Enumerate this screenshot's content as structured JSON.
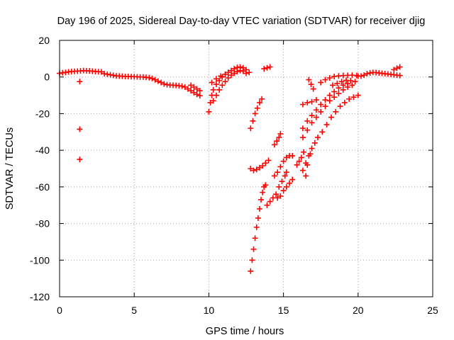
{
  "chart_data": {
    "type": "scatter",
    "title": "Day 196 of 2025, Sidereal Day-to-day VTEC variation (SDTVAR) for receiver djig",
    "xlabel": "GPS time / hours",
    "ylabel": "SDTVAR / TECUs",
    "xlim": [
      0,
      25
    ],
    "ylim": [
      -120,
      20
    ],
    "xticks": [
      "0",
      "5",
      "10",
      "15",
      "20",
      "25"
    ],
    "yticks": [
      "20",
      "0",
      "-20",
      "-40",
      "-60",
      "-80",
      "-100",
      "-120"
    ],
    "grid": true,
    "marker": "plus",
    "series_color": "#ff0000",
    "series": [
      {
        "points": [
          [
            0.0,
            2.0
          ],
          [
            0.2,
            2.3
          ],
          [
            0.4,
            2.5
          ],
          [
            0.6,
            2.8
          ],
          [
            0.8,
            3.0
          ],
          [
            1.0,
            3.1
          ],
          [
            1.2,
            3.2
          ],
          [
            1.4,
            3.3
          ],
          [
            1.6,
            3.5
          ],
          [
            1.8,
            3.4
          ],
          [
            2.0,
            3.3
          ],
          [
            2.2,
            3.2
          ],
          [
            2.4,
            3.0
          ],
          [
            2.6,
            2.9
          ],
          [
            2.8,
            2.8
          ],
          [
            1.35,
            -2.5
          ],
          [
            1.35,
            -28.5
          ],
          [
            1.35,
            -45
          ],
          [
            3.0,
            1.8
          ],
          [
            3.2,
            1.5
          ],
          [
            3.4,
            1.2
          ],
          [
            3.6,
            0.9
          ],
          [
            3.8,
            0.6
          ],
          [
            4.0,
            0.5
          ],
          [
            4.2,
            0.4
          ],
          [
            4.4,
            0.3
          ],
          [
            4.6,
            0.3
          ],
          [
            4.8,
            0.2
          ],
          [
            5.0,
            0.2
          ],
          [
            5.2,
            0.1
          ],
          [
            5.4,
            0.0
          ],
          [
            5.6,
            0.0
          ],
          [
            5.8,
            -0.2
          ],
          [
            6.0,
            -0.4
          ],
          [
            6.2,
            -0.8
          ],
          [
            6.4,
            -1.5
          ],
          [
            6.6,
            -2.3
          ],
          [
            6.8,
            -3.0
          ],
          [
            7.0,
            -3.8
          ],
          [
            7.2,
            -4.2
          ],
          [
            7.4,
            -4.4
          ],
          [
            7.6,
            -4.5
          ],
          [
            7.8,
            -4.6
          ],
          [
            8.0,
            -4.8
          ],
          [
            8.2,
            -5.0
          ],
          [
            8.4,
            -5.5
          ],
          [
            8.6,
            -6.5
          ],
          [
            8.8,
            -7.5
          ],
          [
            9.0,
            -8.5
          ],
          [
            9.2,
            -9.5
          ],
          [
            9.4,
            -10.2
          ],
          [
            8.8,
            -4.5
          ],
          [
            9.0,
            -5.5
          ],
          [
            9.2,
            -6.5
          ],
          [
            9.4,
            -7.5
          ],
          [
            10.0,
            -19
          ],
          [
            10.1,
            -14
          ],
          [
            10.2,
            -10
          ],
          [
            10.3,
            -7
          ],
          [
            10.5,
            -4
          ],
          [
            10.7,
            -2
          ],
          [
            10.9,
            0
          ],
          [
            11.1,
            1.5
          ],
          [
            11.3,
            2.5
          ],
          [
            11.5,
            3.5
          ],
          [
            11.7,
            4.5
          ],
          [
            11.9,
            5.2
          ],
          [
            12.1,
            5.5
          ],
          [
            12.3,
            5.0
          ],
          [
            12.5,
            4.0
          ],
          [
            12.7,
            2.5
          ],
          [
            10.3,
            -13
          ],
          [
            10.5,
            -10
          ],
          [
            10.7,
            -7
          ],
          [
            10.9,
            -4.5
          ],
          [
            11.1,
            -2.5
          ],
          [
            11.3,
            -0.5
          ],
          [
            11.5,
            1.0
          ],
          [
            11.7,
            2.0
          ],
          [
            11.9,
            3.0
          ],
          [
            12.1,
            3.5
          ],
          [
            12.3,
            3.2
          ],
          [
            12.5,
            2.0
          ],
          [
            10.2,
            -3
          ],
          [
            10.5,
            -1
          ],
          [
            10.8,
            0.5
          ],
          [
            11.1,
            1.5
          ],
          [
            13.7,
            4.5
          ],
          [
            13.9,
            5.0
          ],
          [
            14.1,
            5.5
          ],
          [
            12.8,
            -106
          ],
          [
            12.9,
            -100
          ],
          [
            13.0,
            -94
          ],
          [
            13.1,
            -88
          ],
          [
            13.2,
            -82
          ],
          [
            13.3,
            -77
          ],
          [
            13.4,
            -72
          ],
          [
            13.5,
            -67
          ],
          [
            13.6,
            -63
          ],
          [
            13.7,
            -60
          ],
          [
            13.8,
            -59
          ],
          [
            12.8,
            -28
          ],
          [
            12.95,
            -24
          ],
          [
            13.1,
            -20
          ],
          [
            13.25,
            -17
          ],
          [
            13.4,
            -14
          ],
          [
            13.55,
            -12
          ],
          [
            12.8,
            -50
          ],
          [
            13.0,
            -51
          ],
          [
            13.2,
            -50.5
          ],
          [
            13.4,
            -49.5
          ],
          [
            13.6,
            -48.5
          ],
          [
            13.8,
            -47
          ],
          [
            14.0,
            -45.5
          ],
          [
            13.9,
            -70
          ],
          [
            14.1,
            -68
          ],
          [
            14.3,
            -66
          ],
          [
            14.5,
            -64
          ],
          [
            14.7,
            -60
          ],
          [
            14.9,
            -57
          ],
          [
            15.1,
            -54
          ],
          [
            15.2,
            -52
          ],
          [
            14.4,
            -54
          ],
          [
            14.6,
            -52
          ],
          [
            14.8,
            -49
          ],
          [
            15.0,
            -46
          ],
          [
            15.2,
            -44
          ],
          [
            15.4,
            -43
          ],
          [
            15.6,
            -43
          ],
          [
            14.4,
            -37
          ],
          [
            14.55,
            -35
          ],
          [
            14.7,
            -33
          ],
          [
            14.8,
            -31
          ],
          [
            14.6,
            -66
          ],
          [
            14.8,
            -65
          ],
          [
            15.0,
            -62
          ],
          [
            15.2,
            -60
          ],
          [
            15.4,
            -58
          ],
          [
            15.6,
            -56
          ],
          [
            15.9,
            -48
          ],
          [
            16.05,
            -46
          ],
          [
            16.2,
            -44
          ],
          [
            16.35,
            -41
          ],
          [
            16.7,
            -1.5
          ],
          [
            16.85,
            -4
          ],
          [
            17.0,
            -6.5
          ],
          [
            16.3,
            -15
          ],
          [
            16.6,
            -14
          ],
          [
            16.9,
            -13.5
          ],
          [
            17.2,
            -12.5
          ],
          [
            16.3,
            -33
          ],
          [
            16.6,
            -29
          ],
          [
            16.9,
            -25
          ],
          [
            17.2,
            -22
          ],
          [
            17.5,
            -19
          ],
          [
            17.8,
            -16
          ],
          [
            18.1,
            -13
          ],
          [
            18.4,
            -11
          ],
          [
            18.7,
            -9
          ],
          [
            19.0,
            -7
          ],
          [
            19.3,
            -5.5
          ],
          [
            19.6,
            -4.5
          ],
          [
            16.3,
            -28
          ],
          [
            16.6,
            -24
          ],
          [
            16.9,
            -21
          ],
          [
            17.2,
            -18
          ],
          [
            17.5,
            -15
          ],
          [
            17.8,
            -12.5
          ],
          [
            18.1,
            -10
          ],
          [
            18.4,
            -8
          ],
          [
            18.7,
            -6
          ],
          [
            19.0,
            -4.5
          ],
          [
            19.3,
            -3.5
          ],
          [
            16.3,
            -51
          ],
          [
            16.5,
            -47
          ],
          [
            16.7,
            -43
          ],
          [
            16.9,
            -39
          ],
          [
            17.1,
            -36
          ],
          [
            17.3,
            -33
          ],
          [
            17.6,
            -30
          ],
          [
            17.9,
            -26
          ],
          [
            18.2,
            -22
          ],
          [
            18.5,
            -19
          ],
          [
            18.8,
            -16
          ],
          [
            19.1,
            -14
          ],
          [
            19.4,
            -12
          ],
          [
            19.7,
            -11
          ],
          [
            20.0,
            -10
          ],
          [
            16.5,
            -54
          ],
          [
            16.6,
            -48
          ],
          [
            16.8,
            -42
          ],
          [
            17.5,
            -3
          ],
          [
            17.8,
            -1.5
          ],
          [
            18.1,
            -0.5
          ],
          [
            18.4,
            0.3
          ],
          [
            18.7,
            0.6
          ],
          [
            19.0,
            0.8
          ],
          [
            19.3,
            0.9
          ],
          [
            19.6,
            1.0
          ],
          [
            19.9,
            0.8
          ],
          [
            20.0,
            0.5
          ],
          [
            18.3,
            -4.5
          ],
          [
            18.6,
            -3.5
          ],
          [
            18.9,
            -2.5
          ],
          [
            19.2,
            -1.8
          ],
          [
            19.5,
            -2.0
          ],
          [
            19.8,
            -2.5
          ],
          [
            20.2,
            0.5
          ],
          [
            20.4,
            1.0
          ],
          [
            20.6,
            1.8
          ],
          [
            20.8,
            2.2
          ],
          [
            21.0,
            2.5
          ],
          [
            21.2,
            2.4
          ],
          [
            21.4,
            2.2
          ],
          [
            21.6,
            2.0
          ],
          [
            21.8,
            1.8
          ],
          [
            22.0,
            1.6
          ],
          [
            22.2,
            1.4
          ],
          [
            22.4,
            1.2
          ],
          [
            22.6,
            1.0
          ],
          [
            22.8,
            0.8
          ],
          [
            22.4,
            4.0
          ],
          [
            22.6,
            4.8
          ],
          [
            22.8,
            5.5
          ]
        ]
      }
    ]
  }
}
